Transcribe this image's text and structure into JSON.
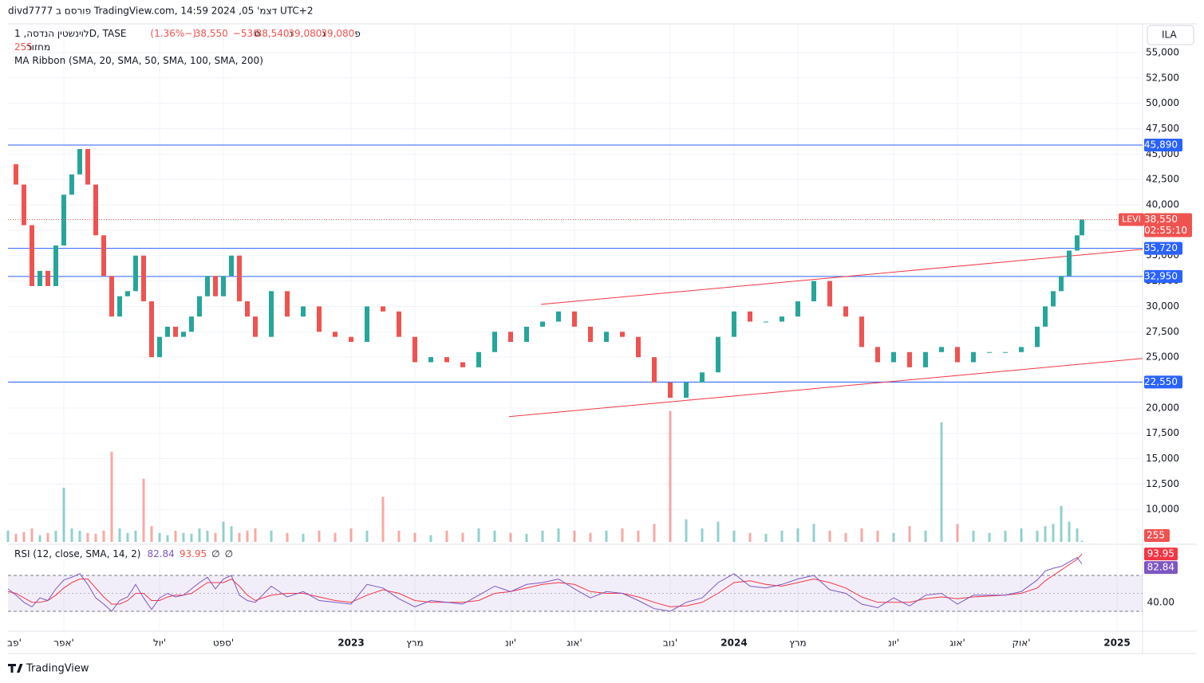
{
  "header": "divd7777 פורסם ב TradingView.com, דצמ' 05, 2024 14:59 UTC+2",
  "brand": "TradingView",
  "currency_button": "ILA",
  "chart_data": {
    "type": "candlestick",
    "symbol_line": "לוינשטין הנדסה, 1D, TASE",
    "ticker": "LEVI",
    "countdown": "02:55:10",
    "ohlc": [
      {
        "prefix": "פ",
        "value": 39080,
        "label": "39,080"
      },
      {
        "prefix": "ג",
        "value": 39080,
        "label": "39,080"
      },
      {
        "prefix": "נ",
        "value": 38540,
        "label": "38,540"
      },
      {
        "prefix": "ס",
        "value": 38550,
        "label": "38,550"
      }
    ],
    "change": {
      "value": -530,
      "label": "−530 (−1.36%)"
    },
    "volume_title": "מחזור",
    "ma_title": "MA Ribbon (SMA, 20, SMA, 50, SMA, 100, SMA, 200)",
    "rsi_title": "RSI (12, close, SMA, 14, 2)",
    "rsi_extra": [
      "∅",
      "∅"
    ],
    "x": [
      1.25,
      1.5,
      1.75,
      2,
      2.25,
      2.5,
      2.75,
      3,
      3.25,
      3.5,
      3.75,
      4,
      4.25,
      4.5,
      4.75,
      5,
      5.25,
      5.5,
      5.75,
      6,
      6.25,
      6.5,
      6.75,
      7,
      7.25,
      7.5,
      7.75,
      8,
      8.25,
      8.5,
      8.75,
      9,
      9.5,
      10,
      10.5,
      11,
      11.5,
      12,
      12.5,
      13,
      13.5,
      14,
      14.5,
      15,
      15.5,
      16,
      16.5,
      17,
      17.5,
      18,
      18.5,
      19,
      19.5,
      20,
      20.5,
      21,
      21.5,
      22,
      22.5,
      23,
      23.5,
      24,
      24.5,
      25,
      25.5,
      26,
      26.5,
      27,
      27.5,
      28,
      28.5,
      29,
      29.5,
      30,
      30.5,
      31,
      31.5,
      32,
      32.5,
      33,
      33.5,
      33.75,
      34,
      34.25,
      34.5,
      34.75,
      34.9
    ],
    "close": [
      44000,
      42000,
      38000,
      32000,
      33500,
      32000,
      36000,
      41000,
      43000,
      45500,
      42000,
      37000,
      33000,
      29000,
      31000,
      31500,
      35000,
      30500,
      25000,
      27000,
      28000,
      27000,
      27500,
      29000,
      31000,
      33000,
      31000,
      33000,
      35000,
      30500,
      29000,
      27000,
      31500,
      29000,
      30000,
      27500,
      27000,
      26500,
      30000,
      29500,
      27000,
      24500,
      25000,
      24500,
      24000,
      25500,
      27500,
      26500,
      28000,
      28500,
      29500,
      28000,
      26500,
      27500,
      27000,
      25000,
      22500,
      21000,
      22500,
      23500,
      27000,
      29500,
      28500,
      28500,
      29000,
      30500,
      32500,
      30000,
      29000,
      26000,
      24500,
      25500,
      24000,
      25500,
      26000,
      24500,
      25500,
      25500,
      25500,
      26000,
      28000,
      30000,
      31500,
      33000,
      35500,
      37000,
      38550
    ],
    "volume": [
      2500,
      1800,
      2200,
      3000,
      1500,
      2000,
      2500,
      12000,
      3000,
      2500,
      2000,
      1800,
      2500,
      20000,
      3000,
      2000,
      2500,
      14000,
      3500,
      2000,
      1500,
      2500,
      2000,
      1800,
      3000,
      2500,
      2000,
      4500,
      3500,
      2000,
      2500,
      3000,
      2500,
      2000,
      1800,
      2500,
      2000,
      3000,
      2500,
      10000,
      2500,
      2000,
      1500,
      2500,
      2000,
      3000,
      2500,
      2000,
      1800,
      2500,
      3000,
      2500,
      2000,
      2500,
      3000,
      2500,
      4000,
      29000,
      5000,
      3000,
      4500,
      2500,
      2000,
      1800,
      2500,
      3000,
      4000,
      2500,
      2000,
      3000,
      2500,
      2000,
      3500,
      2500,
      26500,
      4000,
      2500,
      2000,
      2500,
      3000,
      2500,
      3500,
      4000,
      8000,
      4500,
      3000,
      255
    ],
    "rsi": [
      55,
      48,
      40,
      35,
      45,
      42,
      55,
      65,
      68,
      72,
      60,
      45,
      38,
      30,
      42,
      46,
      60,
      45,
      32,
      45,
      50,
      46,
      48,
      55,
      62,
      68,
      55,
      66,
      70,
      48,
      42,
      40,
      58,
      46,
      52,
      42,
      40,
      38,
      60,
      56,
      44,
      35,
      42,
      40,
      38,
      48,
      58,
      52,
      60,
      62,
      66,
      55,
      45,
      52,
      50,
      42,
      33,
      30,
      40,
      45,
      62,
      72,
      58,
      56,
      60,
      66,
      70,
      54,
      50,
      38,
      34,
      45,
      36,
      48,
      50,
      38,
      48,
      48,
      48,
      52,
      65,
      75,
      78,
      80,
      85,
      90,
      82.84
    ],
    "rsi_ma": [
      52,
      50,
      45,
      40,
      40,
      42,
      48,
      56,
      62,
      66,
      66,
      56,
      46,
      38,
      38,
      42,
      50,
      50,
      42,
      42,
      46,
      48,
      48,
      50,
      56,
      62,
      62,
      62,
      66,
      58,
      48,
      42,
      48,
      50,
      50,
      46,
      42,
      40,
      48,
      54,
      50,
      42,
      40,
      40,
      40,
      42,
      50,
      52,
      56,
      60,
      62,
      60,
      52,
      50,
      50,
      46,
      40,
      35,
      36,
      40,
      50,
      62,
      64,
      60,
      58,
      62,
      66,
      62,
      56,
      46,
      40,
      40,
      40,
      44,
      46,
      44,
      46,
      47,
      48,
      50,
      56,
      64,
      70,
      76,
      82,
      88,
      93.95
    ],
    "xlim": [
      1.25,
      36.8
    ],
    "xticks": [
      {
        "value": 1,
        "label": "פב'"
      },
      {
        "value": 3,
        "label": "אפר'"
      },
      {
        "value": 6,
        "label": "יול'"
      },
      {
        "value": 8,
        "label": "ספט'"
      },
      {
        "value": 12,
        "label": "2023"
      },
      {
        "value": 14,
        "label": "מרץ"
      },
      {
        "value": 17,
        "label": "יונ'"
      },
      {
        "value": 19,
        "label": "אוג'"
      },
      {
        "value": 22,
        "label": "נוב'"
      },
      {
        "value": 24,
        "label": "2024"
      },
      {
        "value": 26,
        "label": "מרץ"
      },
      {
        "value": 29,
        "label": "יונ'"
      },
      {
        "value": 31,
        "label": "אוג'"
      },
      {
        "value": 33,
        "label": "אוק'"
      },
      {
        "value": 36,
        "label": "2025"
      }
    ],
    "ylim": [
      6800,
      57430
    ],
    "yticks": [
      {
        "value": 10000,
        "label": "10,000"
      },
      {
        "value": 12500,
        "label": "12,500"
      },
      {
        "value": 15000,
        "label": "15,000"
      },
      {
        "value": 17500,
        "label": "17,500"
      },
      {
        "value": 20000,
        "label": "20,000"
      },
      {
        "value": 22500,
        "label": "22,500"
      },
      {
        "value": 25000,
        "label": "25,000"
      },
      {
        "value": 27500,
        "label": "27,500"
      },
      {
        "value": 30000,
        "label": "30,000"
      },
      {
        "value": 32500,
        "label": "32,500"
      },
      {
        "value": 35000,
        "label": "35,000"
      },
      {
        "value": 37500,
        "label": "37,500"
      },
      {
        "value": 40000,
        "label": "40,000"
      },
      {
        "value": 42500,
        "label": "42,500"
      },
      {
        "value": 45000,
        "label": "45,000"
      },
      {
        "value": 47500,
        "label": "47,500"
      },
      {
        "value": 50000,
        "label": "50,000"
      },
      {
        "value": 52500,
        "label": "52,500"
      },
      {
        "value": 55000,
        "label": "55,000"
      }
    ],
    "volume_lim": [
      0,
      30000
    ],
    "rsi_ylim": [
      9.6,
      102.9
    ],
    "rsi_ticks": [
      {
        "value": 40,
        "label": "40.00"
      }
    ],
    "rsi_bands": [
      30,
      70
    ],
    "levels": [
      {
        "value": 45890,
        "label": "45,890"
      },
      {
        "value": 35720,
        "label": "35,720"
      },
      {
        "value": 32950,
        "label": "32,950"
      },
      {
        "value": 22550,
        "label": "22,550"
      }
    ],
    "trend_lines": [
      {
        "x": [
          17.95,
          36.8
        ],
        "y": [
          30200,
          35620
        ]
      },
      {
        "x": [
          16.95,
          36.8
        ],
        "y": [
          19140,
          24870
        ]
      }
    ],
    "up_color": "#26a69a",
    "down_color": "#ef5350",
    "level_color": "#2962ff",
    "trend_color": "#f23645",
    "rsi_color": "#7e57c2",
    "rsi_ma_color": "#f23645",
    "grid": true
  }
}
